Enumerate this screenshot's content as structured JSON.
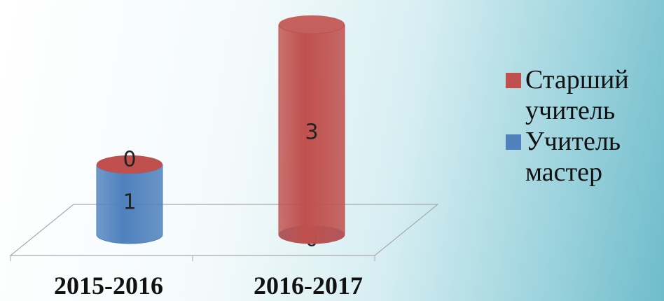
{
  "chart_data": {
    "type": "bar",
    "stacked": true,
    "categories": [
      "2015-2016",
      "2016-2017"
    ],
    "series": [
      {
        "name": "Учитель мастер",
        "color": "#4f81bd",
        "values": [
          1,
          0
        ]
      },
      {
        "name": "Старший учитель",
        "color": "#c0504d",
        "values": [
          0,
          3
        ]
      }
    ]
  }
}
